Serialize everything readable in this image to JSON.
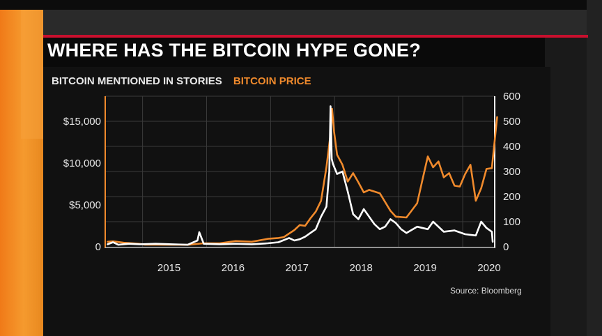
{
  "title": "WHERE HAS THE BITCOIN HYPE GONE?",
  "source": "Source: Bloomberg",
  "colors": {
    "price": "#f08a2c",
    "mentions": "#ffffff",
    "accent_red": "#c8102e",
    "orange_bg": "#f07a18"
  },
  "chart_data": {
    "type": "line",
    "x_ticks": [
      "2015",
      "2016",
      "2017",
      "2018",
      "2019",
      "2020"
    ],
    "xlim": [
      "2014-06",
      "2020-07"
    ],
    "y_left": {
      "ticks": [
        "0",
        "$5,000",
        "$10,000",
        "$15,000"
      ],
      "ylim": [
        0,
        18000
      ]
    },
    "y_right": {
      "ticks": [
        "0",
        "100",
        "200",
        "300",
        "400",
        "500",
        "600"
      ],
      "ylim": [
        0,
        600
      ]
    },
    "grid": true,
    "legend": "top-left",
    "series": [
      {
        "name": "BITCOIN MENTIONED IN STORIES",
        "axis": "right",
        "x": [
          "2014-06",
          "2014-07",
          "2014-08",
          "2014-10",
          "2014-12",
          "2015-03",
          "2015-06",
          "2015-09",
          "2015-11-10",
          "2015-11-20",
          "2015-12",
          "2016-03",
          "2016-06",
          "2016-09",
          "2016-12",
          "2017-02",
          "2017-04",
          "2017-05",
          "2017-06",
          "2017-07",
          "2017-08",
          "2017-09",
          "2017-10",
          "2017-11",
          "2017-12-01",
          "2017-12-08",
          "2017-12-15",
          "2017-12-22",
          "2018-01",
          "2018-02",
          "2018-03",
          "2018-04",
          "2018-05",
          "2018-06",
          "2018-07",
          "2018-08",
          "2018-09",
          "2018-10",
          "2018-11",
          "2018-12",
          "2019-01",
          "2019-02",
          "2019-04",
          "2019-06",
          "2019-07",
          "2019-09",
          "2019-11",
          "2020-01",
          "2020-03",
          "2020-04",
          "2020-05",
          "2020-06",
          "2020-06-20"
        ],
        "values": [
          10,
          18,
          8,
          12,
          10,
          12,
          10,
          8,
          25,
          58,
          12,
          10,
          12,
          10,
          14,
          18,
          35,
          25,
          30,
          40,
          55,
          70,
          120,
          160,
          300,
          560,
          350,
          330,
          290,
          300,
          220,
          130,
          110,
          150,
          120,
          90,
          70,
          80,
          110,
          95,
          70,
          55,
          80,
          70,
          100,
          60,
          65,
          50,
          45,
          100,
          75,
          60,
          20
        ]
      },
      {
        "name": "BITCOIN PRICE",
        "axis": "left",
        "x": [
          "2014-06",
          "2014-07",
          "2014-09",
          "2014-12",
          "2015-01",
          "2015-06",
          "2015-09",
          "2015-12",
          "2016-03",
          "2016-06",
          "2016-09",
          "2016-12",
          "2017-02",
          "2017-03",
          "2017-05",
          "2017-06",
          "2017-07",
          "2017-08",
          "2017-09",
          "2017-10",
          "2017-11",
          "2017-12-08",
          "2017-12-17",
          "2017-12-28",
          "2018-01",
          "2018-02",
          "2018-03",
          "2018-04",
          "2018-05",
          "2018-06",
          "2018-07",
          "2018-09",
          "2018-11",
          "2018-12",
          "2019-02",
          "2019-04",
          "2019-05",
          "2019-06",
          "2019-07",
          "2019-08",
          "2019-09",
          "2019-10",
          "2019-11",
          "2019-12",
          "2020-01",
          "2020-02",
          "2020-03",
          "2020-04",
          "2020-05",
          "2020-06",
          "2020-07"
        ],
        "values": [
          600,
          650,
          480,
          350,
          250,
          240,
          230,
          420,
          420,
          680,
          600,
          950,
          1050,
          1150,
          2000,
          2600,
          2500,
          3400,
          4200,
          5500,
          9500,
          13500,
          16500,
          13800,
          11000,
          9800,
          7800,
          8800,
          7700,
          6500,
          6800,
          6400,
          4300,
          3600,
          3500,
          5200,
          8000,
          10800,
          9500,
          10200,
          8300,
          8800,
          7300,
          7200,
          8700,
          9800,
          5500,
          7000,
          9300,
          9400,
          15500
        ]
      }
    ]
  }
}
